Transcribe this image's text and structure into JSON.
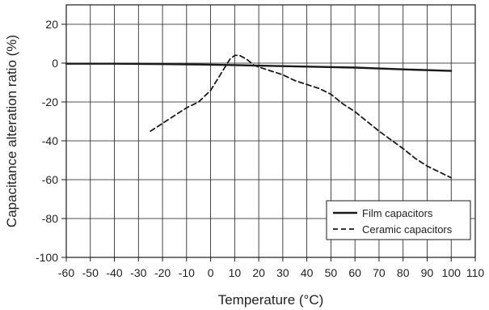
{
  "chart_data": {
    "type": "line",
    "xlabel": "Temperature (°C)",
    "ylabel": "Capacitance alteration ratio (%)",
    "xlim": [
      -60,
      110
    ],
    "ylim": [
      -100,
      30
    ],
    "x_ticks": [
      -60,
      -50,
      -40,
      -30,
      -20,
      -10,
      0,
      10,
      20,
      30,
      40,
      50,
      60,
      70,
      80,
      90,
      100,
      110
    ],
    "y_ticks": [
      20,
      0,
      -20,
      -40,
      -60,
      -80,
      -100
    ],
    "x_tick_labels": [
      "-60",
      "-50",
      "-40",
      "-30",
      "-20",
      "-10",
      "0",
      "10",
      "20",
      "30",
      "40",
      "50",
      "60",
      "70",
      "80",
      "90",
      "100",
      "110"
    ],
    "y_tick_labels": [
      "20",
      "0",
      "-20",
      "-40",
      "-60",
      "-80",
      "-100"
    ],
    "grid": true,
    "legend_position": "bottom-right",
    "series": [
      {
        "name": "Film capacitors",
        "style": "solid",
        "color": "#1a1a1a",
        "x": [
          -60,
          -40,
          -20,
          0,
          10,
          20,
          40,
          60,
          80,
          100
        ],
        "y": [
          -0.3,
          -0.3,
          -0.5,
          -0.8,
          -1.0,
          -1.3,
          -1.8,
          -2.3,
          -3.2,
          -4.0
        ]
      },
      {
        "name": "Ceramic capacitors",
        "style": "dashed",
        "color": "#1a1a1a",
        "x": [
          -25,
          -20,
          -15,
          -10,
          -5,
          0,
          5,
          8,
          10,
          12,
          15,
          18,
          20,
          25,
          30,
          35,
          40,
          45,
          50,
          55,
          60,
          70,
          80,
          85,
          90,
          95,
          100
        ],
        "y": [
          -35,
          -31,
          -27,
          -23,
          -20,
          -14,
          -4,
          2,
          4,
          4,
          2,
          -1,
          -2,
          -4,
          -6,
          -9,
          -11,
          -13,
          -16,
          -21,
          -25,
          -35,
          -44,
          -49,
          -53,
          -56,
          -59
        ]
      }
    ]
  }
}
